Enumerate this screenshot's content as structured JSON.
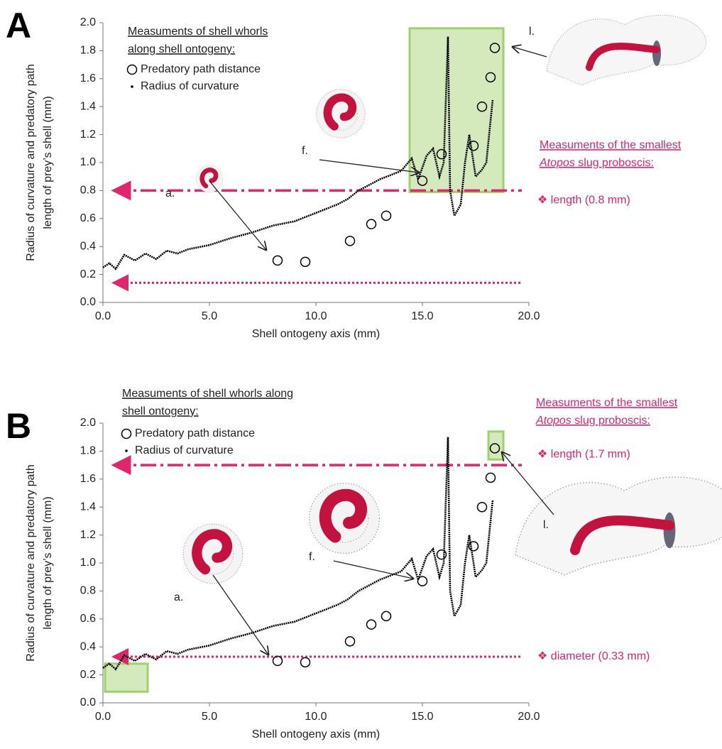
{
  "chart_data": [
    {
      "type": "scatter",
      "panel_label": "A",
      "xlabel": "Shell ontogeny axis (mm)",
      "ylabel": [
        "Radius of curvature and predatory path",
        "length of prey’s shell (mm)"
      ],
      "xlim": [
        0,
        20
      ],
      "xticks": [
        {
          "value": 0,
          "label": "0.0"
        },
        {
          "value": 5,
          "label": "5.0"
        },
        {
          "value": 10,
          "label": "10.0"
        },
        {
          "value": 15,
          "label": "15.0"
        },
        {
          "value": 20,
          "label": "20.0"
        }
      ],
      "ylim": [
        0,
        2
      ],
      "yticks": [
        {
          "value": 0,
          "label": "0.0"
        },
        {
          "value": 0.2,
          "label": "0.2"
        },
        {
          "value": 0.4,
          "label": "0.4"
        },
        {
          "value": 0.6,
          "label": "0.6"
        },
        {
          "value": 0.8,
          "label": "0.8"
        },
        {
          "value": 1,
          "label": "1.0"
        },
        {
          "value": 1.2,
          "label": "1.2"
        },
        {
          "value": 1.4,
          "label": "1.4"
        },
        {
          "value": 1.6,
          "label": "1.6"
        },
        {
          "value": 1.8,
          "label": "1.8"
        },
        {
          "value": 2,
          "label": "2.0"
        }
      ],
      "legend_title": [
        "Measuments of shell whorls",
        "along shell ontogeny:"
      ],
      "series": [
        {
          "name": "Predatory path distance",
          "marker": "circle",
          "color": "#000000",
          "x": [
            8.2,
            9.5,
            11.6,
            12.6,
            13.3,
            15.0,
            15.9,
            17.4,
            17.8,
            18.2,
            18.4
          ],
          "values": [
            0.3,
            0.29,
            0.44,
            0.56,
            0.62,
            0.87,
            1.06,
            1.12,
            1.4,
            1.61,
            1.82
          ]
        },
        {
          "name": "Radius of curvature",
          "marker": "line",
          "color": "#000000",
          "x": [
            0,
            0.3,
            0.6,
            1,
            1.5,
            2,
            2.5,
            3,
            3.5,
            4,
            5,
            6,
            7,
            8,
            9,
            10,
            11,
            11.5,
            12,
            13,
            14,
            14.5,
            14.8,
            15.2,
            15.5,
            15.8,
            16.0,
            16.2,
            16.3,
            16.5,
            16.8,
            17.0,
            17.2,
            17.5,
            17.8,
            18.0,
            18.3
          ],
          "values": [
            0.25,
            0.28,
            0.24,
            0.34,
            0.3,
            0.35,
            0.31,
            0.37,
            0.35,
            0.38,
            0.41,
            0.46,
            0.5,
            0.55,
            0.58,
            0.64,
            0.7,
            0.74,
            0.8,
            0.88,
            0.94,
            1.03,
            0.88,
            1.05,
            1.1,
            0.9,
            1.0,
            1.9,
            0.8,
            0.62,
            0.7,
            1.0,
            1.2,
            0.9,
            0.95,
            1.0,
            1.45
          ]
        }
      ],
      "note": {
        "line1": "Measuments of the smallest",
        "italic": "Atopos",
        "line2": " slug proboscis:"
      },
      "reference_lines": [
        {
          "y": 0.8,
          "style": "dash-dot",
          "color": "#e0256c",
          "label": "❖ length (0.8 mm)"
        },
        {
          "y": 0.14,
          "style": "dotted",
          "color": "#e0256c"
        }
      ],
      "highlights": [
        {
          "xlim": [
            14.4,
            18.8
          ],
          "ylim": [
            0.79,
            1.96
          ],
          "color": "#9fd06a"
        }
      ],
      "callouts": [
        "a.",
        "f.",
        "l."
      ]
    },
    {
      "type": "scatter",
      "panel_label": "B",
      "xlabel": "Shell ontogeny axis (mm)",
      "ylabel": [
        "Radius of curvature and predatory path",
        "length of prey’s shell (mm)"
      ],
      "xlim": [
        0,
        20
      ],
      "xticks": [
        {
          "value": 0,
          "label": "0.0"
        },
        {
          "value": 5,
          "label": "5.0"
        },
        {
          "value": 10,
          "label": "10.0"
        },
        {
          "value": 15,
          "label": "15.0"
        },
        {
          "value": 20,
          "label": "20.0"
        }
      ],
      "ylim": [
        0,
        2
      ],
      "yticks": [
        {
          "value": 0,
          "label": "0.0"
        },
        {
          "value": 0.2,
          "label": "0.2"
        },
        {
          "value": 0.4,
          "label": "0.4"
        },
        {
          "value": 0.6,
          "label": "0.6"
        },
        {
          "value": 0.8,
          "label": "0.8"
        },
        {
          "value": 1,
          "label": "1.0"
        },
        {
          "value": 1.2,
          "label": "1.2"
        },
        {
          "value": 1.4,
          "label": "1.4"
        },
        {
          "value": 1.6,
          "label": "1.6"
        },
        {
          "value": 1.8,
          "label": "1.8"
        },
        {
          "value": 2,
          "label": "2.0"
        }
      ],
      "legend_title": [
        "Measuments of shell whorls along",
        "shell ontogeny:"
      ],
      "series": [
        {
          "name": "Predatory path distance",
          "marker": "circle",
          "color": "#000000",
          "x": [
            8.2,
            9.5,
            11.6,
            12.6,
            13.3,
            15.0,
            15.9,
            17.4,
            17.8,
            18.2,
            18.4
          ],
          "values": [
            0.3,
            0.29,
            0.44,
            0.56,
            0.62,
            0.87,
            1.06,
            1.12,
            1.4,
            1.61,
            1.82
          ]
        },
        {
          "name": "Radius of curvature",
          "marker": "line",
          "color": "#000000",
          "x": [
            0,
            0.3,
            0.6,
            1,
            1.5,
            2,
            2.5,
            3,
            3.5,
            4,
            5,
            6,
            7,
            8,
            9,
            10,
            11,
            11.5,
            12,
            13,
            14,
            14.5,
            14.8,
            15.2,
            15.5,
            15.8,
            16.0,
            16.2,
            16.3,
            16.5,
            16.8,
            17.0,
            17.2,
            17.5,
            17.8,
            18.0,
            18.3
          ],
          "values": [
            0.25,
            0.28,
            0.24,
            0.34,
            0.3,
            0.35,
            0.31,
            0.37,
            0.35,
            0.38,
            0.41,
            0.46,
            0.5,
            0.55,
            0.58,
            0.64,
            0.7,
            0.74,
            0.8,
            0.88,
            0.94,
            1.03,
            0.88,
            1.05,
            1.1,
            0.9,
            1.0,
            1.9,
            0.8,
            0.62,
            0.7,
            1.0,
            1.2,
            0.9,
            0.95,
            1.0,
            1.45
          ]
        }
      ],
      "note": {
        "line1": "Measuments of the smallest",
        "italic": "Atopos",
        "line2": " slug proboscis:"
      },
      "reference_lines": [
        {
          "y": 1.7,
          "style": "dash-dot",
          "color": "#e0256c",
          "label": "❖ length (1.7 mm)"
        },
        {
          "y": 0.33,
          "style": "dotted",
          "color": "#e0256c",
          "label": "❖ diameter (0.33 mm)"
        }
      ],
      "highlights": [
        {
          "xlim": [
            18.1,
            18.8
          ],
          "ylim": [
            1.74,
            1.94
          ],
          "color": "#9fd06a"
        },
        {
          "xlim": [
            0.1,
            2.1
          ],
          "ylim": [
            0.08,
            0.28
          ],
          "color": "#9fd06a"
        }
      ],
      "callouts": [
        "a.",
        "f.",
        "l."
      ]
    }
  ]
}
